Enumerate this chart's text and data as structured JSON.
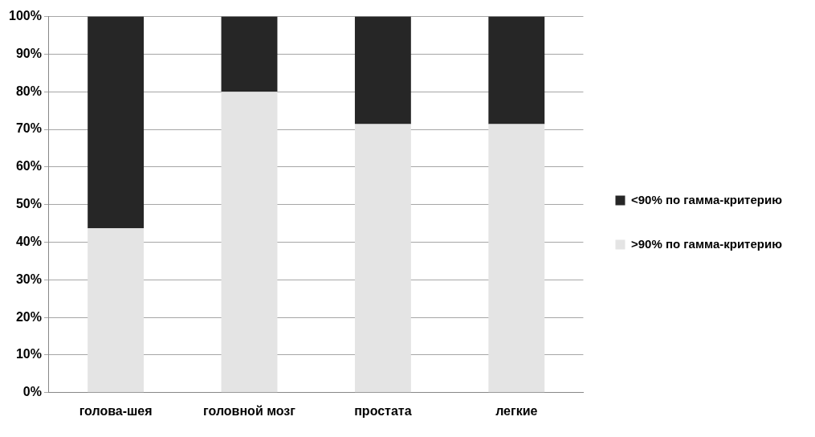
{
  "chart_data": {
    "type": "bar",
    "stacked": true,
    "categories": [
      "голова-шея",
      "головной мозг",
      "простата",
      "легкие"
    ],
    "series": [
      {
        "name": ">90% по гамма-критерию",
        "color": "#e4e4e4",
        "values": [
          43.7,
          80,
          71.4,
          71.4
        ]
      },
      {
        "name": "<90% по гамма-критерию",
        "color": "#262626",
        "values": [
          56.3,
          20,
          28.6,
          28.6
        ]
      }
    ],
    "ylim": [
      0,
      100
    ],
    "yticks": [
      {
        "value": 0,
        "label": "0%"
      },
      {
        "value": 10,
        "label": "10%"
      },
      {
        "value": 20,
        "label": "20%"
      },
      {
        "value": 30,
        "label": "30%"
      },
      {
        "value": 40,
        "label": "40%"
      },
      {
        "value": 50,
        "label": "50%"
      },
      {
        "value": 60,
        "label": "60%"
      },
      {
        "value": 70,
        "label": "70%"
      },
      {
        "value": 80,
        "label": "80%"
      },
      {
        "value": 90,
        "label": "90%"
      },
      {
        "value": 100,
        "label": "100%"
      }
    ],
    "grid": "y",
    "legend": "right"
  }
}
